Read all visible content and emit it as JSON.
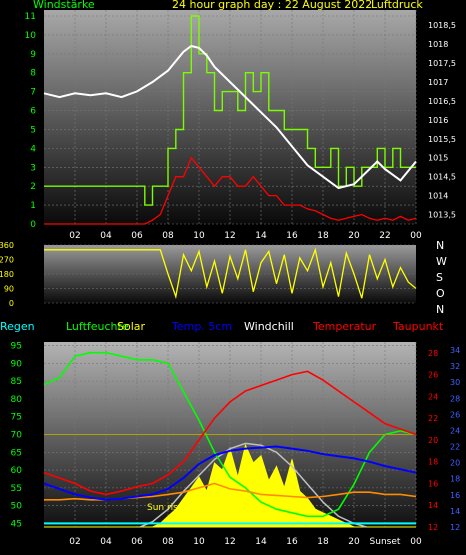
{
  "page_title": "24 hour graph day : 22 August 2022",
  "colors": {
    "wind": "#7CFC00",
    "gust": "#7CFC00",
    "pressure": "#FFFFFF",
    "winddir": "#FFFF00",
    "humidity": "#00FF00",
    "solar": "#FFFF00",
    "temp5cm": "#0000FF",
    "windchill": "#FFFFFF",
    "temperature": "#FF0000",
    "dewpoint": "#FF8C00",
    "rain": "#00FFFF",
    "solar_theory": "#C0C0C0"
  },
  "chart_data": [
    {
      "type": "line",
      "title": "24 hour graph day : 22 August 2022",
      "left_label": "Windstärke",
      "right_label": "Luftdruck",
      "x_ticks": [
        "02",
        "04",
        "06",
        "08",
        "10",
        "12",
        "14",
        "16",
        "18",
        "20",
        "22",
        "00"
      ],
      "y_left_ticks": [
        "0",
        "1",
        "2",
        "3",
        "4",
        "5",
        "6",
        "7",
        "8",
        "9",
        "10",
        "11"
      ],
      "y_left_range": [
        0,
        11
      ],
      "y_right_ticks": [
        "1013,5",
        "1014",
        "1014,5",
        "1015",
        "1015,5",
        "1016",
        "1016,5",
        "1017",
        "1017,5",
        "1018",
        "1018,5"
      ],
      "y_right_range": [
        1013.25,
        1018.9
      ],
      "series": [
        {
          "key": "pressure",
          "axis": "right",
          "x": [
            0,
            1,
            2,
            3,
            4,
            5,
            6,
            7,
            8,
            9,
            9.5,
            10,
            10.5,
            11,
            12,
            13,
            14,
            15,
            16,
            17,
            18,
            19,
            20,
            21,
            21.5,
            22,
            23,
            24
          ],
          "values": [
            1016.7,
            1016.6,
            1016.7,
            1016.65,
            1016.7,
            1016.6,
            1016.75,
            1017.0,
            1017.3,
            1017.8,
            1017.95,
            1017.9,
            1017.7,
            1017.4,
            1017.0,
            1016.6,
            1016.2,
            1015.8,
            1015.3,
            1014.8,
            1014.5,
            1014.2,
            1014.3,
            1014.7,
            1014.9,
            1014.7,
            1014.4,
            1014.9
          ]
        },
        {
          "key": "wind_avg",
          "axis": "left",
          "x": [
            0,
            6.5,
            7,
            7.5,
            8,
            8.5,
            9,
            9.5,
            10,
            10.5,
            11,
            11.5,
            12,
            12.5,
            13,
            13.5,
            14,
            14.5,
            15,
            15.5,
            16,
            16.5,
            17,
            17.5,
            18,
            18.5,
            19,
            19.5,
            20,
            20.5,
            21,
            21.5,
            22,
            22.5,
            23,
            23.5,
            24
          ],
          "values": [
            0,
            0,
            0.2,
            0.5,
            1.5,
            2.5,
            2.5,
            3.5,
            3,
            2.5,
            2,
            2.5,
            2.5,
            2,
            2,
            2.5,
            2,
            1.5,
            1.5,
            1,
            1,
            1,
            0.8,
            0.7,
            0.5,
            0.3,
            0.2,
            0.3,
            0.4,
            0.5,
            0.3,
            0.2,
            0.3,
            0.2,
            0.4,
            0.2,
            0.3
          ]
        },
        {
          "key": "gust",
          "axis": "left",
          "x": [
            0,
            6.5,
            7,
            7.5,
            8,
            8.5,
            9,
            9.5,
            10,
            10.5,
            11,
            11.5,
            12,
            12.5,
            13,
            13.5,
            14,
            14.5,
            15,
            15.5,
            16,
            16.5,
            17,
            17.5,
            18,
            18.5,
            19,
            19.5,
            20,
            20.5,
            21,
            21.5,
            22,
            22.5,
            23,
            23.5,
            24
          ],
          "values": [
            2,
            1,
            2,
            2,
            4,
            5,
            8,
            11,
            9,
            8,
            6,
            7,
            7,
            6,
            8,
            7,
            8,
            6,
            6,
            5,
            5,
            5,
            4,
            3,
            3,
            4,
            2,
            3,
            2,
            3,
            3,
            4,
            3,
            4,
            3,
            3,
            3
          ]
        }
      ]
    },
    {
      "type": "line",
      "title": "",
      "y_left_ticks": [
        "0",
        "90",
        "180",
        "270",
        "360"
      ],
      "y_range": [
        0,
        360
      ],
      "y_right_labels": [
        "N",
        "W",
        "S",
        "O",
        "N"
      ],
      "series": [
        {
          "key": "wind_direction",
          "x": [
            0,
            7.5,
            8,
            8.5,
            9,
            9.5,
            10,
            10.5,
            11,
            11.5,
            12,
            12.5,
            13,
            13.5,
            14,
            14.5,
            15,
            15.5,
            16,
            16.5,
            17,
            17.5,
            18,
            18.5,
            19,
            19.5,
            20,
            20.5,
            21,
            21.5,
            22,
            22.5,
            23,
            23.5,
            24
          ],
          "values": [
            330,
            330,
            180,
            40,
            300,
            200,
            320,
            100,
            260,
            60,
            290,
            150,
            330,
            70,
            250,
            320,
            120,
            300,
            60,
            280,
            200,
            330,
            100,
            250,
            40,
            310,
            180,
            30,
            300,
            150,
            270,
            100,
            220,
            130,
            90
          ]
        }
      ]
    },
    {
      "type": "line",
      "legend": [
        "Regen",
        "Luftfeuchte",
        "Solar",
        "Temp. 5cm",
        "Windchill",
        "Temperatur",
        "Taupunkt"
      ],
      "x_ticks": [
        "02",
        "04",
        "06",
        "08",
        "10",
        "12",
        "14",
        "16",
        "18",
        "20",
        "Sunset",
        "00"
      ],
      "annotations": [
        "Sun rise",
        "Sunset"
      ],
      "y_left_ticks": [
        "45",
        "50",
        "55",
        "60",
        "65",
        "70",
        "75",
        "80",
        "85",
        "90",
        "95"
      ],
      "y_left_range": [
        44,
        96
      ],
      "y_right_outer_ticks": [
        "12",
        "14",
        "16",
        "18",
        "20",
        "22",
        "24",
        "26",
        "28"
      ],
      "y_right_outer_range": [
        12,
        29
      ],
      "y_right_inner_ticks": [
        "12",
        "14",
        "16",
        "18",
        "20",
        "22",
        "24",
        "26",
        "28",
        "30",
        "32",
        "34"
      ],
      "y_right_inner_range": [
        12,
        35
      ],
      "series": [
        {
          "key": "humidity",
          "axis": "left",
          "x": [
            0,
            1,
            2,
            3,
            4,
            5,
            6,
            7,
            8,
            9,
            10,
            11,
            12,
            13,
            14,
            15,
            16,
            17,
            18,
            19,
            20,
            21,
            22,
            23,
            24
          ],
          "values": [
            84,
            86,
            92,
            93,
            93,
            92,
            91,
            91,
            90,
            82,
            74,
            65,
            58,
            55,
            51,
            49,
            48,
            47,
            47,
            49,
            56,
            65,
            70,
            71,
            70
          ]
        },
        {
          "key": "temperature",
          "axis": "right_outer",
          "x": [
            0,
            1,
            2,
            3,
            4,
            5,
            6,
            7,
            8,
            9,
            10,
            11,
            12,
            13,
            14,
            15,
            16,
            17,
            18,
            19,
            20,
            21,
            22,
            23,
            24
          ],
          "values": [
            17,
            16.5,
            16,
            15.3,
            15,
            15.3,
            15.7,
            16,
            16.8,
            18,
            20,
            22,
            23.5,
            24.5,
            25,
            25.5,
            26,
            26.3,
            25.5,
            24.5,
            23.5,
            22.5,
            21.5,
            21,
            20.5
          ]
        },
        {
          "key": "temp5cm",
          "axis": "right_outer",
          "x": [
            0,
            1,
            2,
            3,
            4,
            5,
            6,
            7,
            8,
            9,
            10,
            11,
            12,
            13,
            14,
            15,
            16,
            17,
            18,
            19,
            20,
            21,
            22,
            23,
            24
          ],
          "values": [
            16,
            15.5,
            15,
            14.7,
            14.5,
            14.6,
            14.8,
            15,
            15.5,
            16.5,
            17.8,
            18.6,
            19,
            19.2,
            19.3,
            19.4,
            19.2,
            19,
            18.7,
            18.5,
            18.3,
            18,
            17.6,
            17.3,
            17
          ]
        },
        {
          "key": "dewpoint",
          "axis": "right_outer",
          "x": [
            0,
            1,
            2,
            3,
            4,
            5,
            6,
            7,
            8,
            9,
            10,
            11,
            12,
            13,
            14,
            15,
            16,
            17,
            18,
            19,
            20,
            21,
            22,
            23,
            24
          ],
          "values": [
            14.5,
            14.5,
            14.6,
            14.5,
            14.5,
            14.6,
            14.7,
            14.8,
            15,
            15.2,
            15.6,
            16,
            15.5,
            15.3,
            15,
            14.9,
            14.8,
            14.7,
            14.8,
            15,
            15.2,
            15.2,
            15,
            15,
            14.8
          ]
        },
        {
          "key": "windchill",
          "axis": "right_outer",
          "x": [
            0,
            24
          ],
          "values": [
            20.5,
            20.5
          ]
        },
        {
          "key": "solar",
          "axis": "left",
          "x": [
            0,
            7,
            7.5,
            8,
            8.5,
            9,
            9.5,
            10,
            10.5,
            11,
            11.5,
            12,
            12.5,
            13,
            13.5,
            14,
            14.5,
            15,
            15.5,
            16,
            16.5,
            17,
            17.5,
            18,
            18.5,
            19,
            19.5,
            20,
            24
          ],
          "values": [
            44,
            44,
            45,
            47,
            49,
            52,
            55,
            58,
            54,
            62,
            60,
            66,
            58,
            67,
            62,
            64,
            57,
            61,
            55,
            63,
            54,
            52,
            49,
            48,
            47,
            46,
            45,
            44,
            44
          ]
        },
        {
          "key": "solar_theory",
          "axis": "left",
          "x": [
            6.2,
            7,
            8,
            9,
            10,
            11,
            12,
            13,
            14,
            15,
            16,
            17,
            18,
            19,
            20,
            20.8
          ],
          "values": [
            44,
            45.5,
            49,
            54,
            58.5,
            63,
            66,
            67.5,
            67,
            65,
            61,
            56,
            51,
            47,
            45,
            44
          ]
        },
        {
          "key": "rain",
          "axis": "left",
          "x": [
            0,
            24
          ],
          "values": [
            45,
            45
          ]
        }
      ]
    }
  ]
}
